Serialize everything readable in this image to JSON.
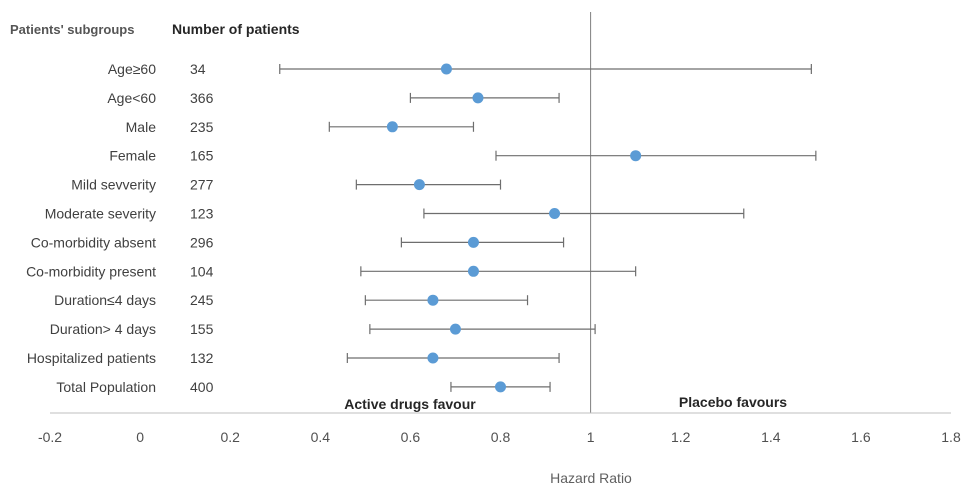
{
  "chart_data": {
    "type": "forest",
    "headers": {
      "subgroups": "Patients' subgroups",
      "count": "Number of patients"
    },
    "xlabel": "Hazard Ratio",
    "xlim": [
      -0.2,
      1.8
    ],
    "xticks": [
      -0.2,
      0,
      0.2,
      0.4,
      0.6,
      0.8,
      1,
      1.2,
      1.4,
      1.6,
      1.8
    ],
    "reference_line": 1,
    "annotations": {
      "left": "Active drugs favour",
      "right": "Placebo favours"
    },
    "marker_color": "#5b9bd5",
    "rows": [
      {
        "label": "Age≥60",
        "n": "34",
        "hr": 0.68,
        "lo": 0.31,
        "hi": 1.49
      },
      {
        "label": "Age<60",
        "n": "366",
        "hr": 0.75,
        "lo": 0.6,
        "hi": 0.93
      },
      {
        "label": "Male",
        "n": "235",
        "hr": 0.56,
        "lo": 0.42,
        "hi": 0.74
      },
      {
        "label": "Female",
        "n": "165",
        "hr": 1.1,
        "lo": 0.79,
        "hi": 1.5
      },
      {
        "label": "Mild sevverity",
        "n": "277",
        "hr": 0.62,
        "lo": 0.48,
        "hi": 0.8
      },
      {
        "label": "Moderate severity",
        "n": "123",
        "hr": 0.92,
        "lo": 0.63,
        "hi": 1.34
      },
      {
        "label": "Co-morbidity absent",
        "n": "296",
        "hr": 0.74,
        "lo": 0.58,
        "hi": 0.94
      },
      {
        "label": "Co-morbidity present",
        "n": "104",
        "hr": 0.74,
        "lo": 0.49,
        "hi": 1.1
      },
      {
        "label": "Duration≤4 days",
        "n": "245",
        "hr": 0.65,
        "lo": 0.5,
        "hi": 0.86
      },
      {
        "label": "Duration> 4 days",
        "n": "155",
        "hr": 0.7,
        "lo": 0.51,
        "hi": 1.01
      },
      {
        "label": "Hospitalized patients",
        "n": "132",
        "hr": 0.65,
        "lo": 0.46,
        "hi": 0.93
      },
      {
        "label": "Total Population",
        "n": "400",
        "hr": 0.8,
        "lo": 0.69,
        "hi": 0.91
      }
    ]
  }
}
